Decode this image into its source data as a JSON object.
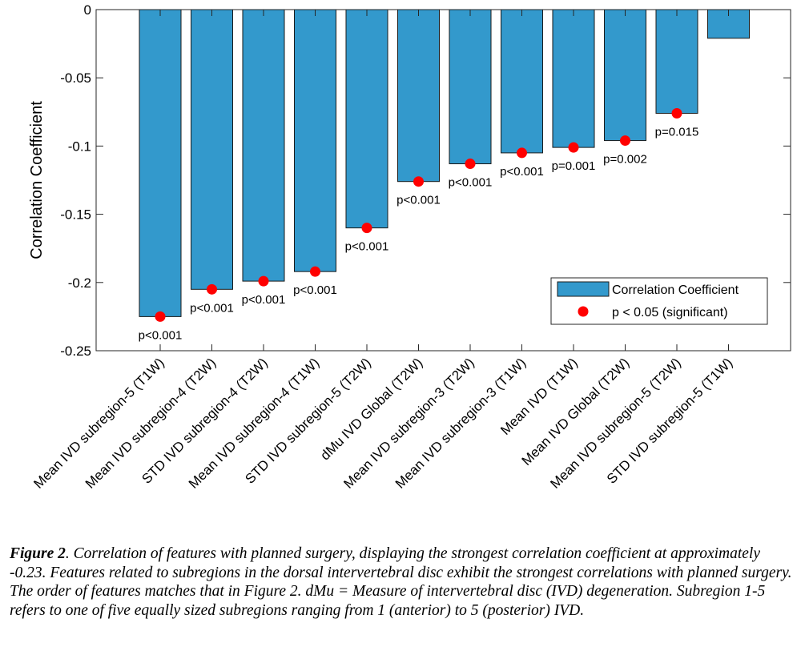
{
  "chart_data": {
    "type": "bar",
    "categories": [
      "Mean IVD subregion-5 (T1W)",
      "Mean IVD subregion-4 (T2W)",
      "STD IVD subregion-4 (T2W)",
      "Mean IVD subregion-4 (T1W)",
      "STD IVD subregion-5 (T2W)",
      "dMu IVD Global (T2W)",
      "Mean IVD subregion-3 (T2W)",
      "Mean IVD subregion-3 (T1W)",
      "Mean IVD (T1W)",
      "Mean IVD Global (T2W)",
      "Mean IVD subregion-5 (T2W)",
      "STD IVD subregion-5 (T1W)"
    ],
    "values": [
      -0.225,
      -0.205,
      -0.199,
      -0.192,
      -0.16,
      -0.126,
      -0.113,
      -0.105,
      -0.101,
      -0.096,
      -0.076,
      -0.021
    ],
    "significant": [
      true,
      true,
      true,
      true,
      true,
      true,
      true,
      true,
      true,
      true,
      true,
      false
    ],
    "p_labels": [
      "p<0.001",
      "p<0.001",
      "p<0.001",
      "p<0.001",
      "p<0.001",
      "p<0.001",
      "p<0.001",
      "p<0.001",
      "p=0.001",
      "p=0.002",
      "p=0.015",
      ""
    ],
    "title": "",
    "xlabel": "",
    "ylabel": "Correlation Coefficient",
    "ylim": [
      -0.25,
      0
    ],
    "yticks": [
      0,
      -0.05,
      -0.1,
      -0.15,
      -0.2,
      -0.25
    ],
    "ytick_labels": [
      "0",
      "-0.05",
      "-0.1",
      "-0.15",
      "-0.2",
      "-0.25"
    ],
    "legend": {
      "position": "bottom-right",
      "entries": [
        "Correlation Coefficient",
        "p < 0.05 (significant)"
      ]
    },
    "grid": false
  },
  "colors": {
    "bar": "#3399cc",
    "bar_edge": "#1a1a1a",
    "marker": "#ff0000"
  },
  "caption": {
    "label": "Figure 2",
    "text": ". Correlation of features with planned surgery, displaying the strongest correlation coefficient at approximately -0.23. Features related to subregions in the dorsal intervertebral disc exhibit the strongest correlations with planned surgery. The order of features matches that in Figure 2.  dMu = Measure of intervertebral disc (IVD) degeneration. Subregion 1-5 refers to one of five equally sized subregions ranging from 1 (anterior) to 5 (posterior) IVD."
  }
}
